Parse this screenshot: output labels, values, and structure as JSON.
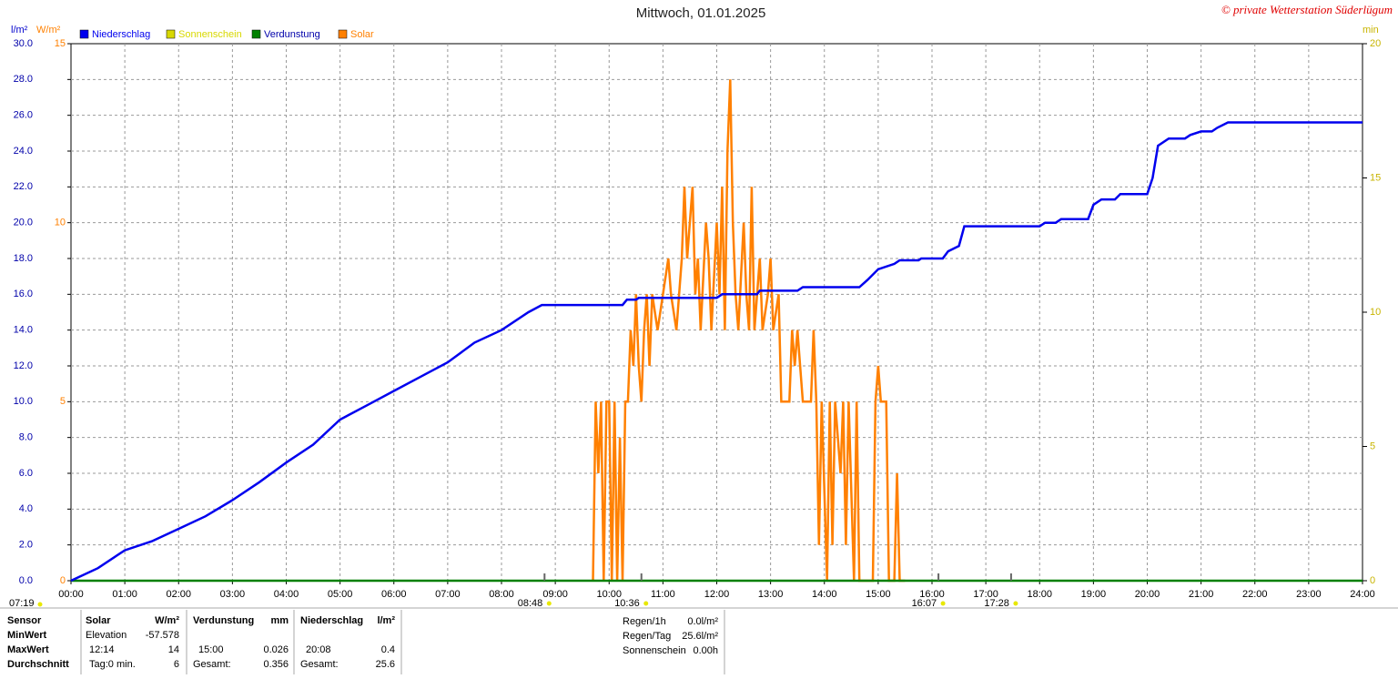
{
  "chart_data": {
    "type": "line",
    "title": "Mittwoch, 01.01.2025",
    "copyright": "© private Wetterstation Süderlügum",
    "y_unit": "l/m²",
    "y3_unit": "W/m²",
    "y2_unit": "min",
    "xlim": [
      0,
      24
    ],
    "xticks": [
      {
        "value": 0,
        "label": "00:00"
      },
      {
        "value": 1,
        "label": "01:00"
      },
      {
        "value": 2,
        "label": "02:00"
      },
      {
        "value": 3,
        "label": "03:00"
      },
      {
        "value": 4,
        "label": "04:00"
      },
      {
        "value": 5,
        "label": "05:00"
      },
      {
        "value": 6,
        "label": "06:00"
      },
      {
        "value": 7,
        "label": "07:00"
      },
      {
        "value": 8,
        "label": "08:00"
      },
      {
        "value": 9,
        "label": "09:00"
      },
      {
        "value": 10,
        "label": "10:00"
      },
      {
        "value": 11,
        "label": "11:00"
      },
      {
        "value": 12,
        "label": "12:00"
      },
      {
        "value": 13,
        "label": "13:00"
      },
      {
        "value": 14,
        "label": "14:00"
      },
      {
        "value": 15,
        "label": "15:00"
      },
      {
        "value": 16,
        "label": "16:00"
      },
      {
        "value": 17,
        "label": "17:00"
      },
      {
        "value": 18,
        "label": "18:00"
      },
      {
        "value": 19,
        "label": "19:00"
      },
      {
        "value": 20,
        "label": "20:00"
      },
      {
        "value": 21,
        "label": "21:00"
      },
      {
        "value": 22,
        "label": "22:00"
      },
      {
        "value": 23,
        "label": "23:00"
      },
      {
        "value": 24,
        "label": "24:00"
      }
    ],
    "ylim": [
      0,
      30
    ],
    "yticks": [
      {
        "value": 0,
        "label": "0.0"
      },
      {
        "value": 2,
        "label": "2.0"
      },
      {
        "value": 4,
        "label": "4.0"
      },
      {
        "value": 6,
        "label": "6.0"
      },
      {
        "value": 8,
        "label": "8.0"
      },
      {
        "value": 10,
        "label": "10.0"
      },
      {
        "value": 12,
        "label": "12.0"
      },
      {
        "value": 14,
        "label": "14.0"
      },
      {
        "value": 16,
        "label": "16.0"
      },
      {
        "value": 18,
        "label": "18.0"
      },
      {
        "value": 20,
        "label": "20.0"
      },
      {
        "value": 22,
        "label": "22.0"
      },
      {
        "value": 24,
        "label": "24.0"
      },
      {
        "value": 26,
        "label": "26.0"
      },
      {
        "value": 28,
        "label": "28.0"
      },
      {
        "value": 30,
        "label": "30.0"
      }
    ],
    "y3lim": [
      0,
      15
    ],
    "y3ticks": [
      0,
      5,
      10,
      15
    ],
    "y2lim": [
      0,
      20
    ],
    "y2ticks": [
      0,
      5,
      10,
      15,
      20
    ],
    "grid": true,
    "series": [
      {
        "name": "Niederschlag",
        "color": "#0000ee",
        "axis": "y",
        "x": [
          0,
          0.5,
          1,
          1.5,
          2,
          2.5,
          3,
          3.5,
          4,
          4.5,
          5,
          5.5,
          6,
          6.5,
          7,
          7.5,
          8,
          8.5,
          8.75,
          10.25,
          10.33,
          10.5,
          10.55,
          12,
          12.1,
          12.75,
          12.8,
          13.5,
          13.6,
          14.65,
          14.8,
          15,
          15.3,
          15.4,
          15.75,
          15.8,
          16.2,
          16.3,
          16.5,
          16.6,
          18,
          18.1,
          18.3,
          18.4,
          18.9,
          19,
          19.15,
          19.4,
          19.5,
          20,
          20.1,
          20.2,
          20.4,
          20.7,
          20.8,
          21,
          21.2,
          21.3,
          21.5,
          24
        ],
        "values": [
          0,
          0.7,
          1.7,
          2.2,
          2.9,
          3.6,
          4.5,
          5.5,
          6.6,
          7.6,
          9.0,
          9.8,
          10.6,
          11.4,
          12.2,
          13.3,
          14.0,
          15.0,
          15.4,
          15.4,
          15.7,
          15.7,
          15.8,
          15.8,
          16.0,
          16.0,
          16.2,
          16.2,
          16.4,
          16.4,
          16.8,
          17.4,
          17.7,
          17.9,
          17.9,
          18.0,
          18.0,
          18.4,
          18.7,
          19.8,
          19.8,
          20.0,
          20.0,
          20.2,
          20.2,
          21.0,
          21.3,
          21.3,
          21.6,
          21.6,
          22.5,
          24.3,
          24.7,
          24.7,
          24.9,
          25.1,
          25.1,
          25.3,
          25.6,
          25.6
        ]
      },
      {
        "name": "Sonnenschein",
        "color": "#d8d800",
        "axis": "y2",
        "x": [],
        "values": []
      },
      {
        "name": "Verdunstung",
        "color": "#008000",
        "axis": "y",
        "x": [
          0,
          24
        ],
        "values": [
          0,
          0
        ]
      },
      {
        "name": "Solar",
        "color": "#ff8000",
        "axis": "y3",
        "x": [
          9.7,
          9.75,
          9.8,
          9.85,
          9.9,
          9.95,
          10,
          10.05,
          10.1,
          10.15,
          10.2,
          10.25,
          10.3,
          10.35,
          10.4,
          10.45,
          10.5,
          10.55,
          10.6,
          10.65,
          10.7,
          10.75,
          10.8,
          10.9,
          11,
          11.1,
          11.15,
          11.25,
          11.35,
          11.4,
          11.45,
          11.5,
          11.55,
          11.6,
          11.65,
          11.7,
          11.8,
          11.85,
          11.9,
          12,
          12.05,
          12.1,
          12.15,
          12.2,
          12.25,
          12.3,
          12.35,
          12.4,
          12.5,
          12.55,
          12.6,
          12.65,
          12.7,
          12.8,
          12.85,
          12.95,
          13,
          13.05,
          13.15,
          13.2,
          13.35,
          13.4,
          13.45,
          13.5,
          13.55,
          13.6,
          13.75,
          13.8,
          13.85,
          13.9,
          13.95,
          14.05,
          14.1,
          14.15,
          14.2,
          14.3,
          14.35,
          14.4,
          14.45,
          14.55,
          14.6,
          14.65,
          14.9,
          14.95,
          15,
          15.05,
          15.15,
          15.2,
          15.3,
          15.35,
          15.4,
          15.5
        ],
        "values": [
          0,
          5,
          3,
          5,
          0,
          5,
          5,
          0,
          5,
          0,
          4,
          0,
          5,
          5,
          7,
          6,
          8,
          6,
          5,
          7,
          8,
          6,
          8,
          7,
          8,
          9,
          8,
          7,
          9,
          11,
          9,
          10,
          11,
          8,
          9,
          7,
          10,
          9,
          7,
          10,
          8,
          11,
          7,
          12,
          14,
          10,
          8,
          7,
          10,
          8,
          7,
          11,
          7,
          9,
          7,
          8,
          9,
          7,
          8,
          5,
          5,
          7,
          6,
          7,
          6,
          5,
          5,
          7,
          5,
          1,
          5,
          0,
          5,
          1,
          5,
          3,
          5,
          1,
          5,
          0,
          5,
          0,
          0,
          5,
          6,
          5,
          5,
          0,
          0,
          3,
          0,
          0
        ]
      }
    ],
    "sun_markers": [
      {
        "x": 8.8,
        "label": "08:48"
      },
      {
        "x": 10.6,
        "label": "10:36"
      },
      {
        "x": 16.12,
        "label": "16:07"
      },
      {
        "x": 17.47,
        "label": "17:28"
      }
    ],
    "sunrise_label": "07:19"
  },
  "stats": {
    "header": [
      "Sensor",
      "Solar",
      "W/m²",
      "Verdunstung",
      "mm",
      "Niederschlag",
      "l/m²"
    ],
    "rows": [
      [
        "MinWert",
        "Elevation",
        "-57.578",
        "",
        "",
        "",
        ""
      ],
      [
        "MaxWert",
        "12:14",
        "14",
        "15:00",
        "0.026",
        "20:08",
        "0.4"
      ],
      [
        "Durchschnitt",
        "Tag:0 min.",
        "6",
        "Gesamt:",
        "0.356",
        "Gesamt:",
        "25.6"
      ]
    ],
    "side": [
      [
        "Regen/1h",
        "0.0l/m²"
      ],
      [
        "Regen/Tag",
        "25.6l/m²"
      ],
      [
        "Sonnenschein",
        "0.00h"
      ]
    ]
  }
}
